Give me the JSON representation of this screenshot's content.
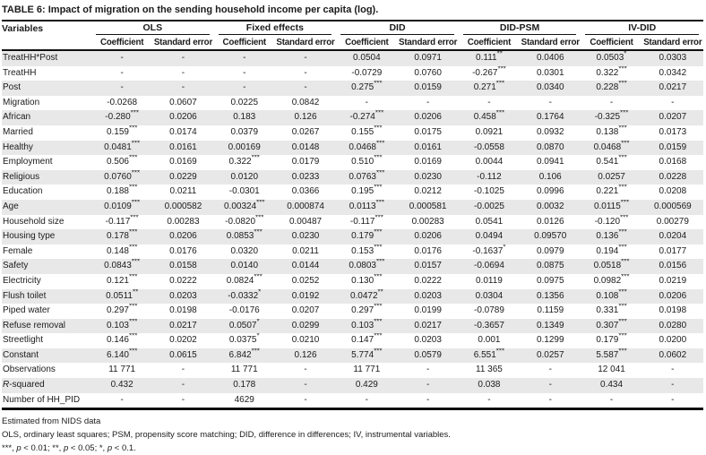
{
  "title": "TABLE 6: Impact of migration on the sending household income per capita (log).",
  "table": {
    "variables_header": "Variables",
    "groups": [
      {
        "label": "OLS"
      },
      {
        "label": "Fixed effects"
      },
      {
        "label": "DID"
      },
      {
        "label": "DID-PSM"
      },
      {
        "label": "IV-DID"
      }
    ],
    "subheaders": [
      "Coefficient",
      "Standard error"
    ],
    "rows": [
      {
        "variable": "TreatHH*Post",
        "cells": [
          "-",
          "-",
          "-",
          "-",
          "0.0504",
          "0.0971",
          "0.111**",
          "0.0406",
          "0.0503*",
          "0.0303"
        ]
      },
      {
        "variable": "TreatHH",
        "cells": [
          "-",
          "-",
          "-",
          "-",
          "-0.0729",
          "0.0760",
          "-0.267***",
          "0.0301",
          "0.322***",
          "0.0342"
        ]
      },
      {
        "variable": "Post",
        "cells": [
          "-",
          "-",
          "-",
          "-",
          "0.275***",
          "0.0159",
          "0.271***",
          "0.0340",
          "0.228***",
          "0.0217"
        ]
      },
      {
        "variable": "Migration",
        "cells": [
          "-0.0268",
          "0.0607",
          "0.0225",
          "0.0842",
          "-",
          "-",
          "-",
          "-",
          "-",
          "-"
        ]
      },
      {
        "variable": "African",
        "cells": [
          "-0.280***",
          "0.0206",
          "0.183",
          "0.126",
          "-0.274***",
          "0.0206",
          "0.458***",
          "0.1764",
          "-0.325***",
          "0.0207"
        ]
      },
      {
        "variable": "Married",
        "cells": [
          "0.159***",
          "0.0174",
          "0.0379",
          "0.0267",
          "0.155***",
          "0.0175",
          "0.0921",
          "0.0932",
          "0.138***",
          "0.0173"
        ]
      },
      {
        "variable": "Healthy",
        "cells": [
          "0.0481***",
          "0.0161",
          "0.00169",
          "0.0148",
          "0.0468***",
          "0.0161",
          "-0.0558",
          "0.0870",
          "0.0468***",
          "0.0159"
        ]
      },
      {
        "variable": "Employment",
        "cells": [
          "0.506***",
          "0.0169",
          "0.322***",
          "0.0179",
          "0.510***",
          "0.0169",
          "0.0044",
          "0.0941",
          "0.541***",
          "0.0168"
        ]
      },
      {
        "variable": "Religious",
        "cells": [
          "0.0760***",
          "0.0229",
          "0.0120",
          "0.0233",
          "0.0763***",
          "0.0230",
          "-0.112",
          "0.106",
          "0.0257",
          "0.0228"
        ]
      },
      {
        "variable": "Education",
        "cells": [
          "0.188***",
          "0.0211",
          "-0.0301",
          "0.0366",
          "0.195***",
          "0.0212",
          "-0.1025",
          "0.0996",
          "0.221***",
          "0.0208"
        ]
      },
      {
        "variable": "Age",
        "cells": [
          "0.0109***",
          "0.000582",
          "0.00324***",
          "0.000874",
          "0.0113***",
          "0.000581",
          "-0.0025",
          "0.0032",
          "0.0115***",
          "0.000569"
        ]
      },
      {
        "variable": "Household size",
        "cells": [
          "-0.117***",
          "0.00283",
          "-0.0820***",
          "0.00487",
          "-0.117***",
          "0.00283",
          "0.0541",
          "0.0126",
          "-0.120***",
          "0.00279"
        ]
      },
      {
        "variable": "Housing type",
        "cells": [
          "0.178***",
          "0.0206",
          "0.0853***",
          "0.0230",
          "0.179***",
          "0.0206",
          "0.0494",
          "0.09570",
          "0.136***",
          "0.0204"
        ]
      },
      {
        "variable": "Female",
        "cells": [
          "0.148***",
          "0.0176",
          "0.0320",
          "0.0211",
          "0.153***",
          "0.0176",
          "-0.1637*",
          "0.0979",
          "0.194***",
          "0.0177"
        ]
      },
      {
        "variable": "Safety",
        "cells": [
          "0.0843***",
          "0.0158",
          "0.0140",
          "0.0144",
          "0.0803***",
          "0.0157",
          "-0.0694",
          "0.0875",
          "0.0518***",
          "0.0156"
        ]
      },
      {
        "variable": "Electricity",
        "cells": [
          "0.121***",
          "0.0222",
          "0.0824***",
          "0.0252",
          "0.130***",
          "0.0222",
          "0.0119",
          "0.0975",
          "0.0982***",
          "0.0219"
        ]
      },
      {
        "variable": "Flush toilet",
        "cells": [
          "0.0511**",
          "0.0203",
          "-0.0332*",
          "0.0192",
          "0.0472**",
          "0.0203",
          "0.0304",
          "0.1356",
          "0.108***",
          "0.0206"
        ]
      },
      {
        "variable": "Piped water",
        "cells": [
          "0.297***",
          "0.0198",
          "-0.0176",
          "0.0207",
          "0.297***",
          "0.0199",
          "-0.0789",
          "0.1159",
          "0.331***",
          "0.0198"
        ]
      },
      {
        "variable": "Refuse removal",
        "cells": [
          "0.103***",
          "0.0217",
          "0.0507*",
          "0.0299",
          "0.103***",
          "0.0217",
          "-0.3657",
          "0.1349",
          "0.307***",
          "0.0280"
        ]
      },
      {
        "variable": "Streetlight",
        "cells": [
          "0.146***",
          "0.0202",
          "0.0375*",
          "0.0210",
          "0.147***",
          "0.0203",
          "0.001",
          "0.1299",
          "0.179***",
          "0.0200"
        ]
      },
      {
        "variable": "Constant",
        "cells": [
          "6.140***",
          "0.0615",
          "6.842***",
          "0.126",
          "5.774***",
          "0.0579",
          "6.551***",
          "0.0257",
          "5.587***",
          "0.0602"
        ]
      },
      {
        "variable": "Observations",
        "cells": [
          "11 771",
          "-",
          "11 771",
          "-",
          "11 771",
          "-",
          "11 365",
          "-",
          "12 041",
          "-"
        ]
      },
      {
        "variable": [
          {
            "t": "R",
            "i": true
          },
          {
            "t": "-squared"
          }
        ],
        "cells": [
          "0.432",
          "-",
          "0.178",
          "-",
          "0.429",
          "-",
          "0.038",
          "-",
          "0.434",
          "-"
        ]
      },
      {
        "variable": "Number of HH_PID",
        "cells": [
          "-",
          "-",
          "4629",
          "-",
          "-",
          "-",
          "-",
          "-",
          "-",
          "-"
        ]
      }
    ]
  },
  "footnotes": [
    [
      {
        "t": "Estimated from NIDS data"
      }
    ],
    [
      {
        "t": "OLS, ordinary least squares; PSM, propensity score matching; DID, difference in differences; IV, instrumental variables."
      }
    ],
    [
      {
        "t": "***, "
      },
      {
        "t": "p",
        "i": true
      },
      {
        "t": " < 0.01; **, "
      },
      {
        "t": "p",
        "i": true
      },
      {
        "t": " < 0.05; *, "
      },
      {
        "t": "p",
        "i": true
      },
      {
        "t": " < 0.1."
      }
    ]
  ]
}
